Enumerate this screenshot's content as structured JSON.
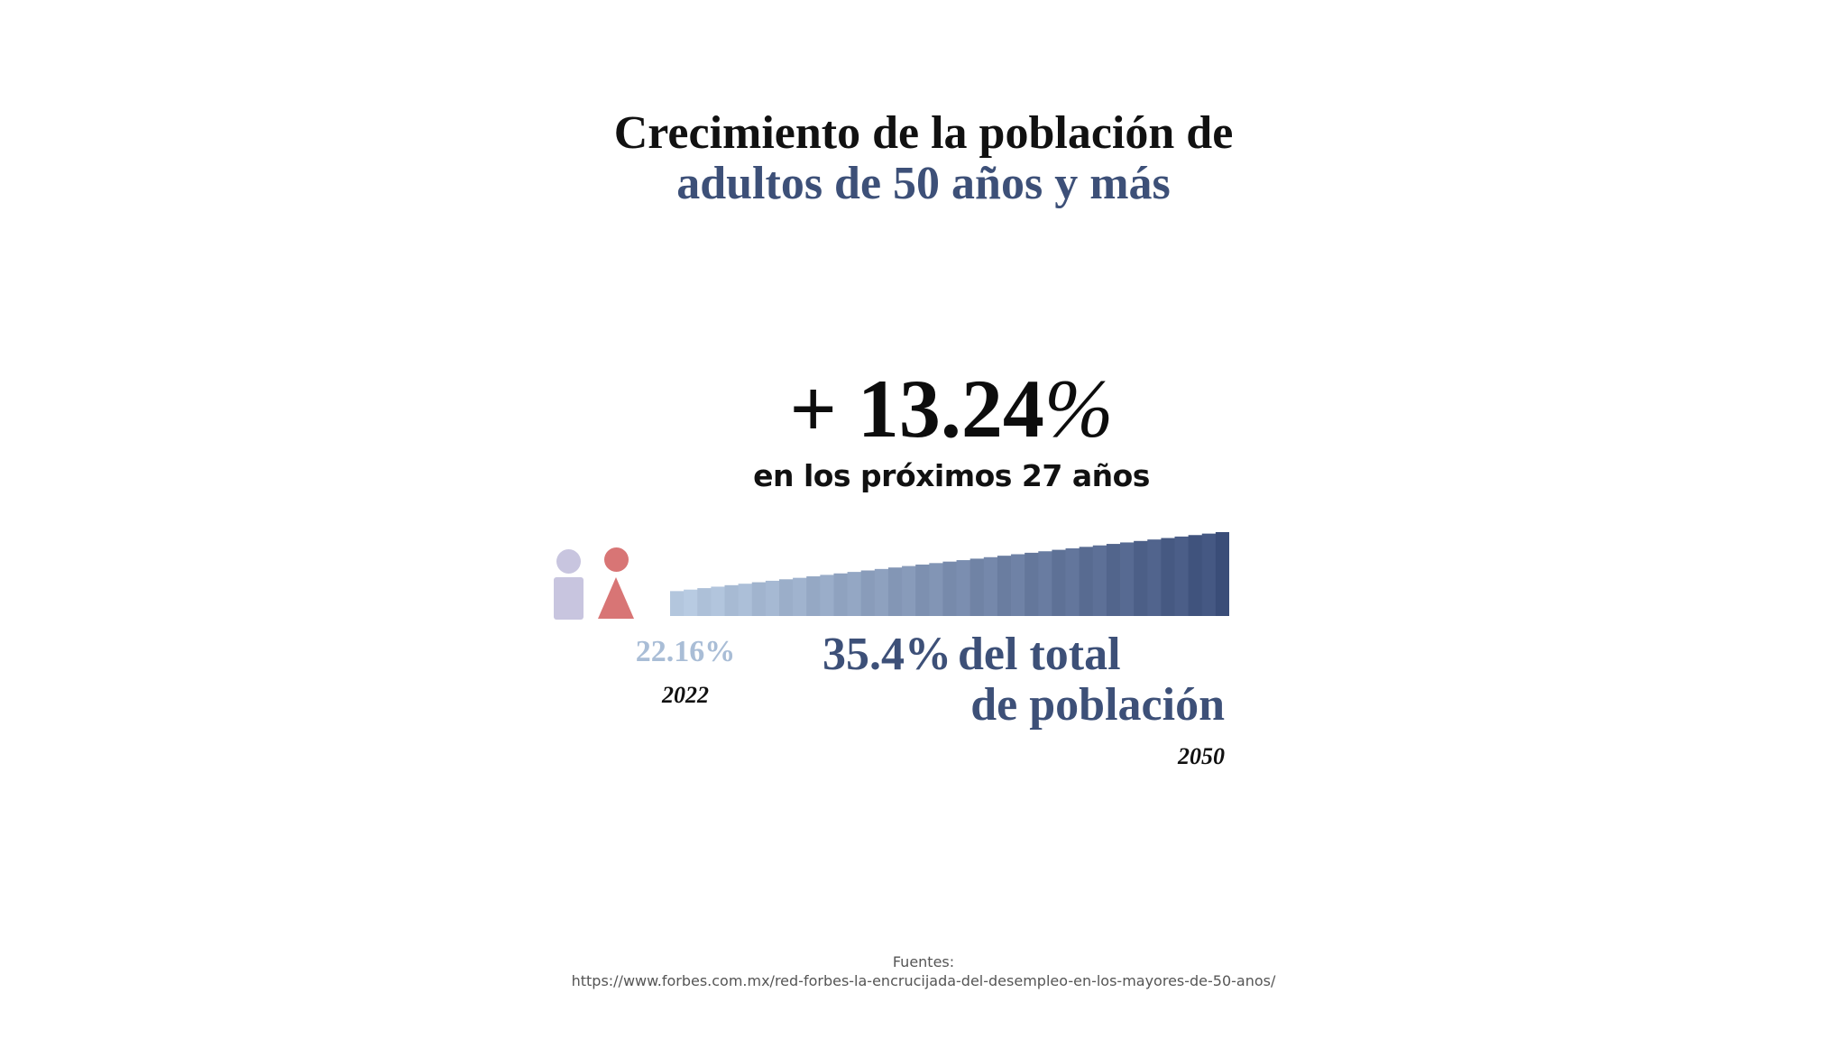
{
  "title": {
    "line1": "Crecimiento de la población de",
    "line2": "adultos de 50 años y más"
  },
  "headline": {
    "value": "+ 13.24",
    "percent_sign": "%",
    "subtitle": "en los próximos 27 años"
  },
  "icons": [
    "man-icon",
    "woman-icon"
  ],
  "bar": {
    "stripes": 41,
    "start_color": "#b3c6dd",
    "end_color": "#3a4d78"
  },
  "start": {
    "value": "22.16%",
    "year": "2022"
  },
  "end": {
    "value": "35.4%",
    "label_line1": "del total",
    "label_line2": "de población",
    "year": "2050"
  },
  "colors": {
    "accent": "#3d5078",
    "man": "#c8c5df",
    "woman": "#d87575",
    "start_value": "#a9bdd6"
  },
  "sources": {
    "label": "Fuentes:",
    "url": "https://www.forbes.com.mx/red-forbes-la-encrucijada-del-desempleo-en-los-mayores-de-50-anos/"
  }
}
